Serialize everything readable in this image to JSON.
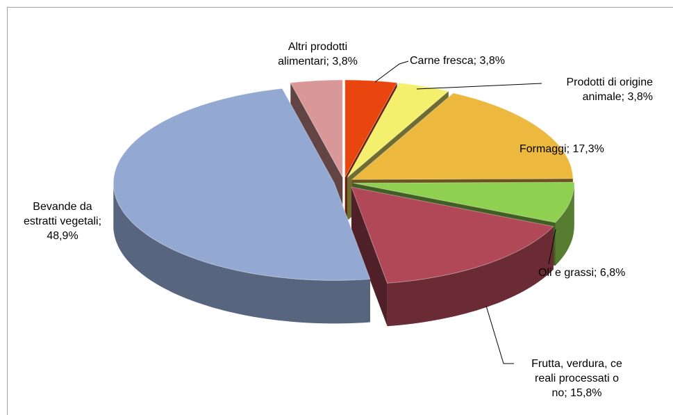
{
  "chart_data": {
    "type": "pie3d",
    "values": [
      3.8,
      3.8,
      17.3,
      6.8,
      15.8,
      48.9,
      3.8
    ],
    "value_labels": [
      "Carne fresca; 3,8%",
      "Prodotti di origine\nanimale; 3,8%",
      "Formaggi; 17,3%",
      "Oli e grassi; 6,8%",
      "Frutta, verdura, ce\nreali processati o\nno; 15,8%",
      "Bevande da\nestratti vegetali;\n48,9%",
      "Altri prodotti\nalimentari; 3,8%"
    ],
    "colors": [
      "#e8450f",
      "#f4ef6c",
      "#ecb83e",
      "#90d050",
      "#b04858",
      "#93a9d2",
      "#d99897"
    ]
  }
}
